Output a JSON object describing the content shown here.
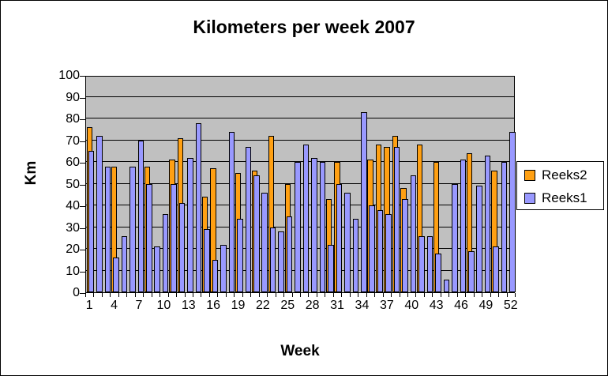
{
  "chart_data": {
    "type": "bar",
    "title": "Kilometers per week 2007",
    "xlabel": "Week",
    "ylabel": "Km",
    "ylim": [
      0,
      100
    ],
    "ytick_step": 10,
    "y_tick_labels": [
      "0",
      "10",
      "20",
      "30",
      "40",
      "50",
      "60",
      "70",
      "80",
      "90",
      "100"
    ],
    "x_tick_labels": [
      "1",
      "4",
      "7",
      "10",
      "13",
      "16",
      "19",
      "22",
      "25",
      "28",
      "31",
      "34",
      "37",
      "40",
      "43",
      "46",
      "49",
      "52"
    ],
    "grid": true,
    "plot_bg": "#C0C0C0",
    "legend_position": "right",
    "categories": [
      1,
      2,
      3,
      4,
      5,
      6,
      7,
      8,
      9,
      10,
      11,
      12,
      13,
      14,
      15,
      16,
      17,
      18,
      19,
      20,
      21,
      22,
      23,
      24,
      25,
      26,
      27,
      28,
      29,
      30,
      31,
      32,
      33,
      34,
      35,
      36,
      37,
      38,
      39,
      40,
      41,
      42,
      43,
      44,
      45,
      46,
      47,
      48,
      49,
      50,
      51,
      52
    ],
    "series": [
      {
        "name": "Reeks2",
        "color": "#FFA013",
        "values": [
          76,
          0,
          0,
          58,
          0,
          0,
          0,
          58,
          0,
          0,
          61,
          71,
          0,
          0,
          44,
          57,
          0,
          0,
          55,
          0,
          56,
          0,
          72,
          0,
          50,
          0,
          0,
          0,
          0,
          43,
          60,
          0,
          0,
          0,
          61,
          68,
          67,
          72,
          48,
          0,
          68,
          0,
          60,
          0,
          0,
          0,
          64,
          0,
          0,
          56,
          0,
          0
        ]
      },
      {
        "name": "Reeks1",
        "color": "#9999FF",
        "values": [
          65,
          72,
          58,
          16,
          26,
          58,
          70,
          50,
          21,
          36,
          50,
          41,
          62,
          78,
          29,
          15,
          22,
          74,
          34,
          67,
          54,
          46,
          30,
          28,
          35,
          60,
          68,
          62,
          60,
          22,
          50,
          46,
          34,
          83,
          40,
          38,
          36,
          67,
          43,
          54,
          26,
          26,
          18,
          6,
          50,
          61,
          19,
          49,
          63,
          21,
          60,
          74
        ]
      }
    ]
  }
}
